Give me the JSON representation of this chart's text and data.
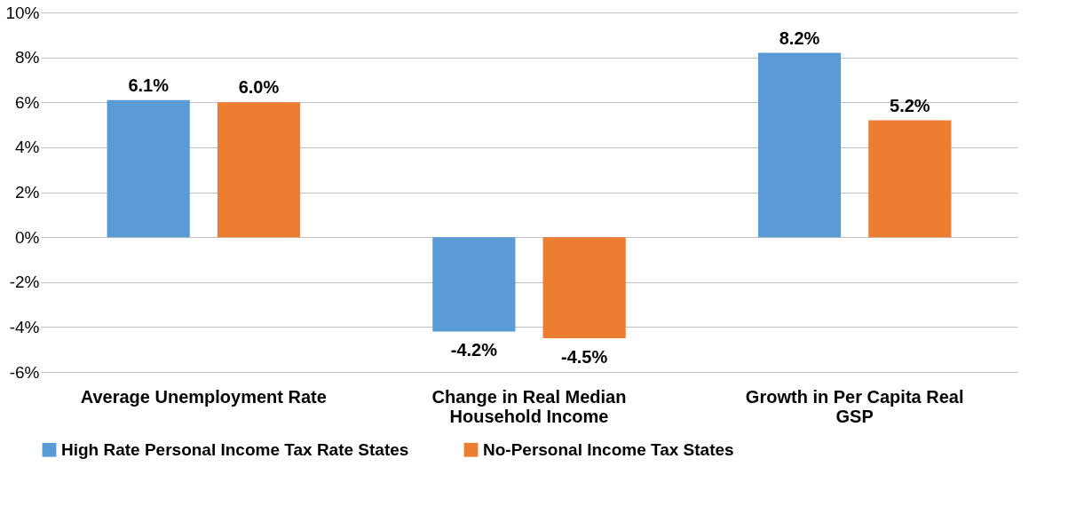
{
  "chart_data": {
    "type": "bar",
    "categories": [
      "Average Unemployment Rate",
      "Change in Real Median Household Income",
      "Growth in Per Capita Real GSP"
    ],
    "series": [
      {
        "name": "High Rate Personal Income Tax Rate States",
        "color": "#5b9bd5",
        "values": [
          6.1,
          -4.2,
          8.2
        ],
        "value_labels": [
          "6.1%",
          "-4.2%",
          "8.2%"
        ]
      },
      {
        "name": "No-Personal Income Tax States",
        "color": "#ed7d31",
        "values": [
          6.0,
          -4.5,
          5.2
        ],
        "value_labels": [
          "6.0%",
          "-4.5%",
          "5.2%"
        ]
      }
    ],
    "ylim": [
      -6,
      10
    ],
    "yticks": [
      {
        "value": -6,
        "label": "-6%"
      },
      {
        "value": -4,
        "label": "-4%"
      },
      {
        "value": -2,
        "label": "-2%"
      },
      {
        "value": 0,
        "label": "0%"
      },
      {
        "value": 2,
        "label": "2%"
      },
      {
        "value": 4,
        "label": "4%"
      },
      {
        "value": 6,
        "label": "6%"
      },
      {
        "value": 8,
        "label": "8%"
      },
      {
        "value": 10,
        "label": "10%"
      }
    ],
    "grid": "y",
    "legend": "bottom"
  }
}
